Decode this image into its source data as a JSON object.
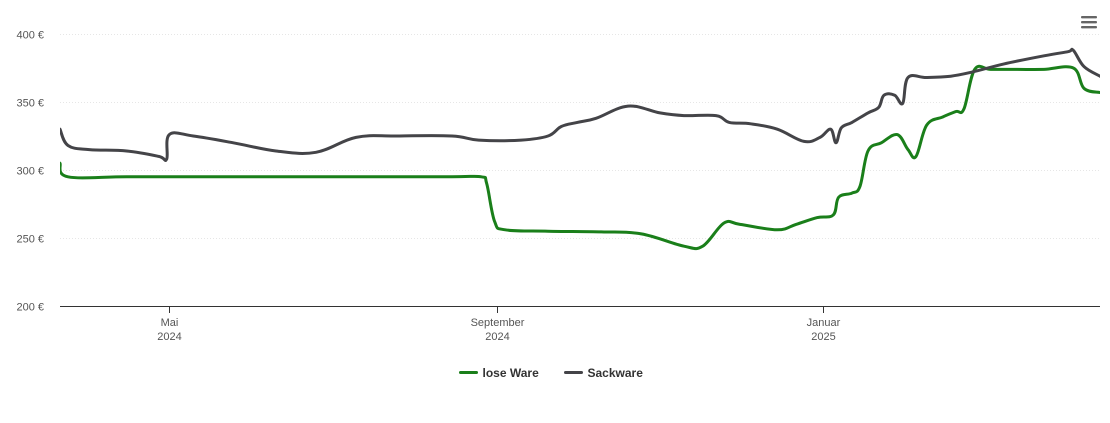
{
  "chart_data": {
    "type": "line",
    "title": "",
    "xlabel": "",
    "ylabel": "",
    "currency_suffix": " €",
    "ylim": [
      200,
      400
    ],
    "yticks": [
      200,
      250,
      300,
      350,
      400
    ],
    "xlim": [
      "2024-03-21",
      "2025-04-15"
    ],
    "grid": true,
    "legend_position": "bottom-center",
    "x_ticks": [
      {
        "date": "2024-05-01",
        "month": "Mai",
        "year": "2024"
      },
      {
        "date": "2024-09-01",
        "month": "September",
        "year": "2024"
      },
      {
        "date": "2025-01-01",
        "month": "Januar",
        "year": "2025"
      }
    ],
    "series": [
      {
        "name": "lose Ware",
        "color": "#1a7f1a",
        "points": [
          [
            "2024-03-21",
            305
          ],
          [
            "2024-03-24",
            295
          ],
          [
            "2024-04-15",
            295
          ],
          [
            "2024-05-15",
            295
          ],
          [
            "2024-06-15",
            295
          ],
          [
            "2024-07-15",
            295
          ],
          [
            "2024-08-15",
            295
          ],
          [
            "2024-08-26",
            295
          ],
          [
            "2024-08-28",
            290
          ],
          [
            "2024-08-31",
            262
          ],
          [
            "2024-09-04",
            256
          ],
          [
            "2024-09-20",
            255
          ],
          [
            "2024-10-10",
            254.5
          ],
          [
            "2024-10-25",
            253
          ],
          [
            "2024-11-10",
            244
          ],
          [
            "2024-11-17",
            244
          ],
          [
            "2024-11-25",
            261
          ],
          [
            "2024-12-01",
            260
          ],
          [
            "2024-12-15",
            256
          ],
          [
            "2024-12-22",
            260
          ],
          [
            "2024-12-30",
            265
          ],
          [
            "2025-01-05",
            267
          ],
          [
            "2025-01-07",
            280
          ],
          [
            "2025-01-12",
            283
          ],
          [
            "2025-01-15",
            288
          ],
          [
            "2025-01-18",
            314
          ],
          [
            "2025-01-23",
            320
          ],
          [
            "2025-01-29",
            326
          ],
          [
            "2025-02-02",
            315
          ],
          [
            "2025-02-05",
            310
          ],
          [
            "2025-02-09",
            333
          ],
          [
            "2025-02-15",
            339
          ],
          [
            "2025-02-20",
            343
          ],
          [
            "2025-02-23",
            345
          ],
          [
            "2025-02-27",
            374
          ],
          [
            "2025-03-05",
            374
          ],
          [
            "2025-03-15",
            374
          ],
          [
            "2025-03-25",
            374
          ],
          [
            "2025-04-05",
            375
          ],
          [
            "2025-04-09",
            360
          ],
          [
            "2025-04-15",
            357
          ]
        ]
      },
      {
        "name": "Sackware",
        "color": "#444448",
        "points": [
          [
            "2024-03-21",
            330
          ],
          [
            "2024-03-24",
            318
          ],
          [
            "2024-04-01",
            315
          ],
          [
            "2024-04-15",
            314
          ],
          [
            "2024-04-27",
            310
          ],
          [
            "2024-04-30",
            308
          ],
          [
            "2024-05-01",
            326
          ],
          [
            "2024-05-10",
            325
          ],
          [
            "2024-05-25",
            320
          ],
          [
            "2024-06-10",
            314
          ],
          [
            "2024-06-25",
            313
          ],
          [
            "2024-07-10",
            324
          ],
          [
            "2024-07-25",
            325
          ],
          [
            "2024-08-15",
            325
          ],
          [
            "2024-08-25",
            322
          ],
          [
            "2024-09-10",
            322
          ],
          [
            "2024-09-20",
            325
          ],
          [
            "2024-09-25",
            332
          ],
          [
            "2024-10-01",
            335
          ],
          [
            "2024-10-08",
            338
          ],
          [
            "2024-10-20",
            347
          ],
          [
            "2024-11-01",
            342
          ],
          [
            "2024-11-10",
            340
          ],
          [
            "2024-11-22",
            340
          ],
          [
            "2024-11-27",
            335
          ],
          [
            "2024-12-05",
            334
          ],
          [
            "2024-12-15",
            330
          ],
          [
            "2024-12-25",
            321
          ],
          [
            "2024-12-31",
            324
          ],
          [
            "2025-01-04",
            330
          ],
          [
            "2025-01-06",
            320
          ],
          [
            "2025-01-08",
            331
          ],
          [
            "2025-01-12",
            335
          ],
          [
            "2025-01-18",
            342
          ],
          [
            "2025-01-22",
            346
          ],
          [
            "2025-01-24",
            355
          ],
          [
            "2025-01-28",
            355
          ],
          [
            "2025-01-31",
            349
          ],
          [
            "2025-02-02",
            368
          ],
          [
            "2025-02-09",
            368
          ],
          [
            "2025-02-18",
            369
          ],
          [
            "2025-02-26",
            372
          ],
          [
            "2025-03-10",
            378
          ],
          [
            "2025-03-25",
            384
          ],
          [
            "2025-04-03",
            387
          ],
          [
            "2025-04-05",
            388
          ],
          [
            "2025-04-09",
            376
          ],
          [
            "2025-04-15",
            369
          ]
        ]
      }
    ]
  },
  "menu": {
    "icon": "hamburger-menu-icon"
  }
}
